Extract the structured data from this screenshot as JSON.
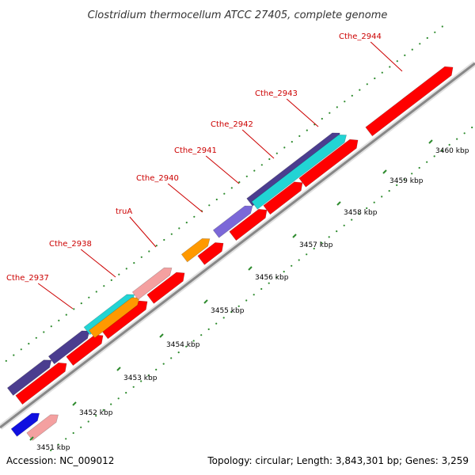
{
  "title": "Clostridium thermocellum ATCC 27405, complete genome",
  "footer": {
    "accession": "Accession: NC_009012",
    "topology": "Topology: circular; Length: 3,843,301 bp; Genes: 3,259"
  },
  "colors": {
    "backbone": "#888888",
    "cds_red": "#ff0000",
    "navy": "#4b3d8f",
    "cyan": "#22d4d4",
    "orange": "#ff9900",
    "pink": "#f4a0a0",
    "lavender": "#7b68d8",
    "blue": "#1010e0",
    "tick": "#2e8b2e",
    "label": "#cc0000"
  },
  "scale_ticks": [
    {
      "label": "3451 kbp"
    },
    {
      "label": "3452 kbp"
    },
    {
      "label": "3453 kbp"
    },
    {
      "label": "3454 kbp"
    },
    {
      "label": "3455 kbp"
    },
    {
      "label": "3456 kbp"
    },
    {
      "label": "3457 kbp"
    },
    {
      "label": "3458 kbp"
    },
    {
      "label": "3459 kbp"
    },
    {
      "label": "3460 kbp"
    }
  ],
  "gene_labels": [
    "Cthe_2937",
    "Cthe_2938",
    "truA",
    "Cthe_2940",
    "Cthe_2941",
    "Cthe_2942",
    "Cthe_2943",
    "Cthe_2944"
  ]
}
